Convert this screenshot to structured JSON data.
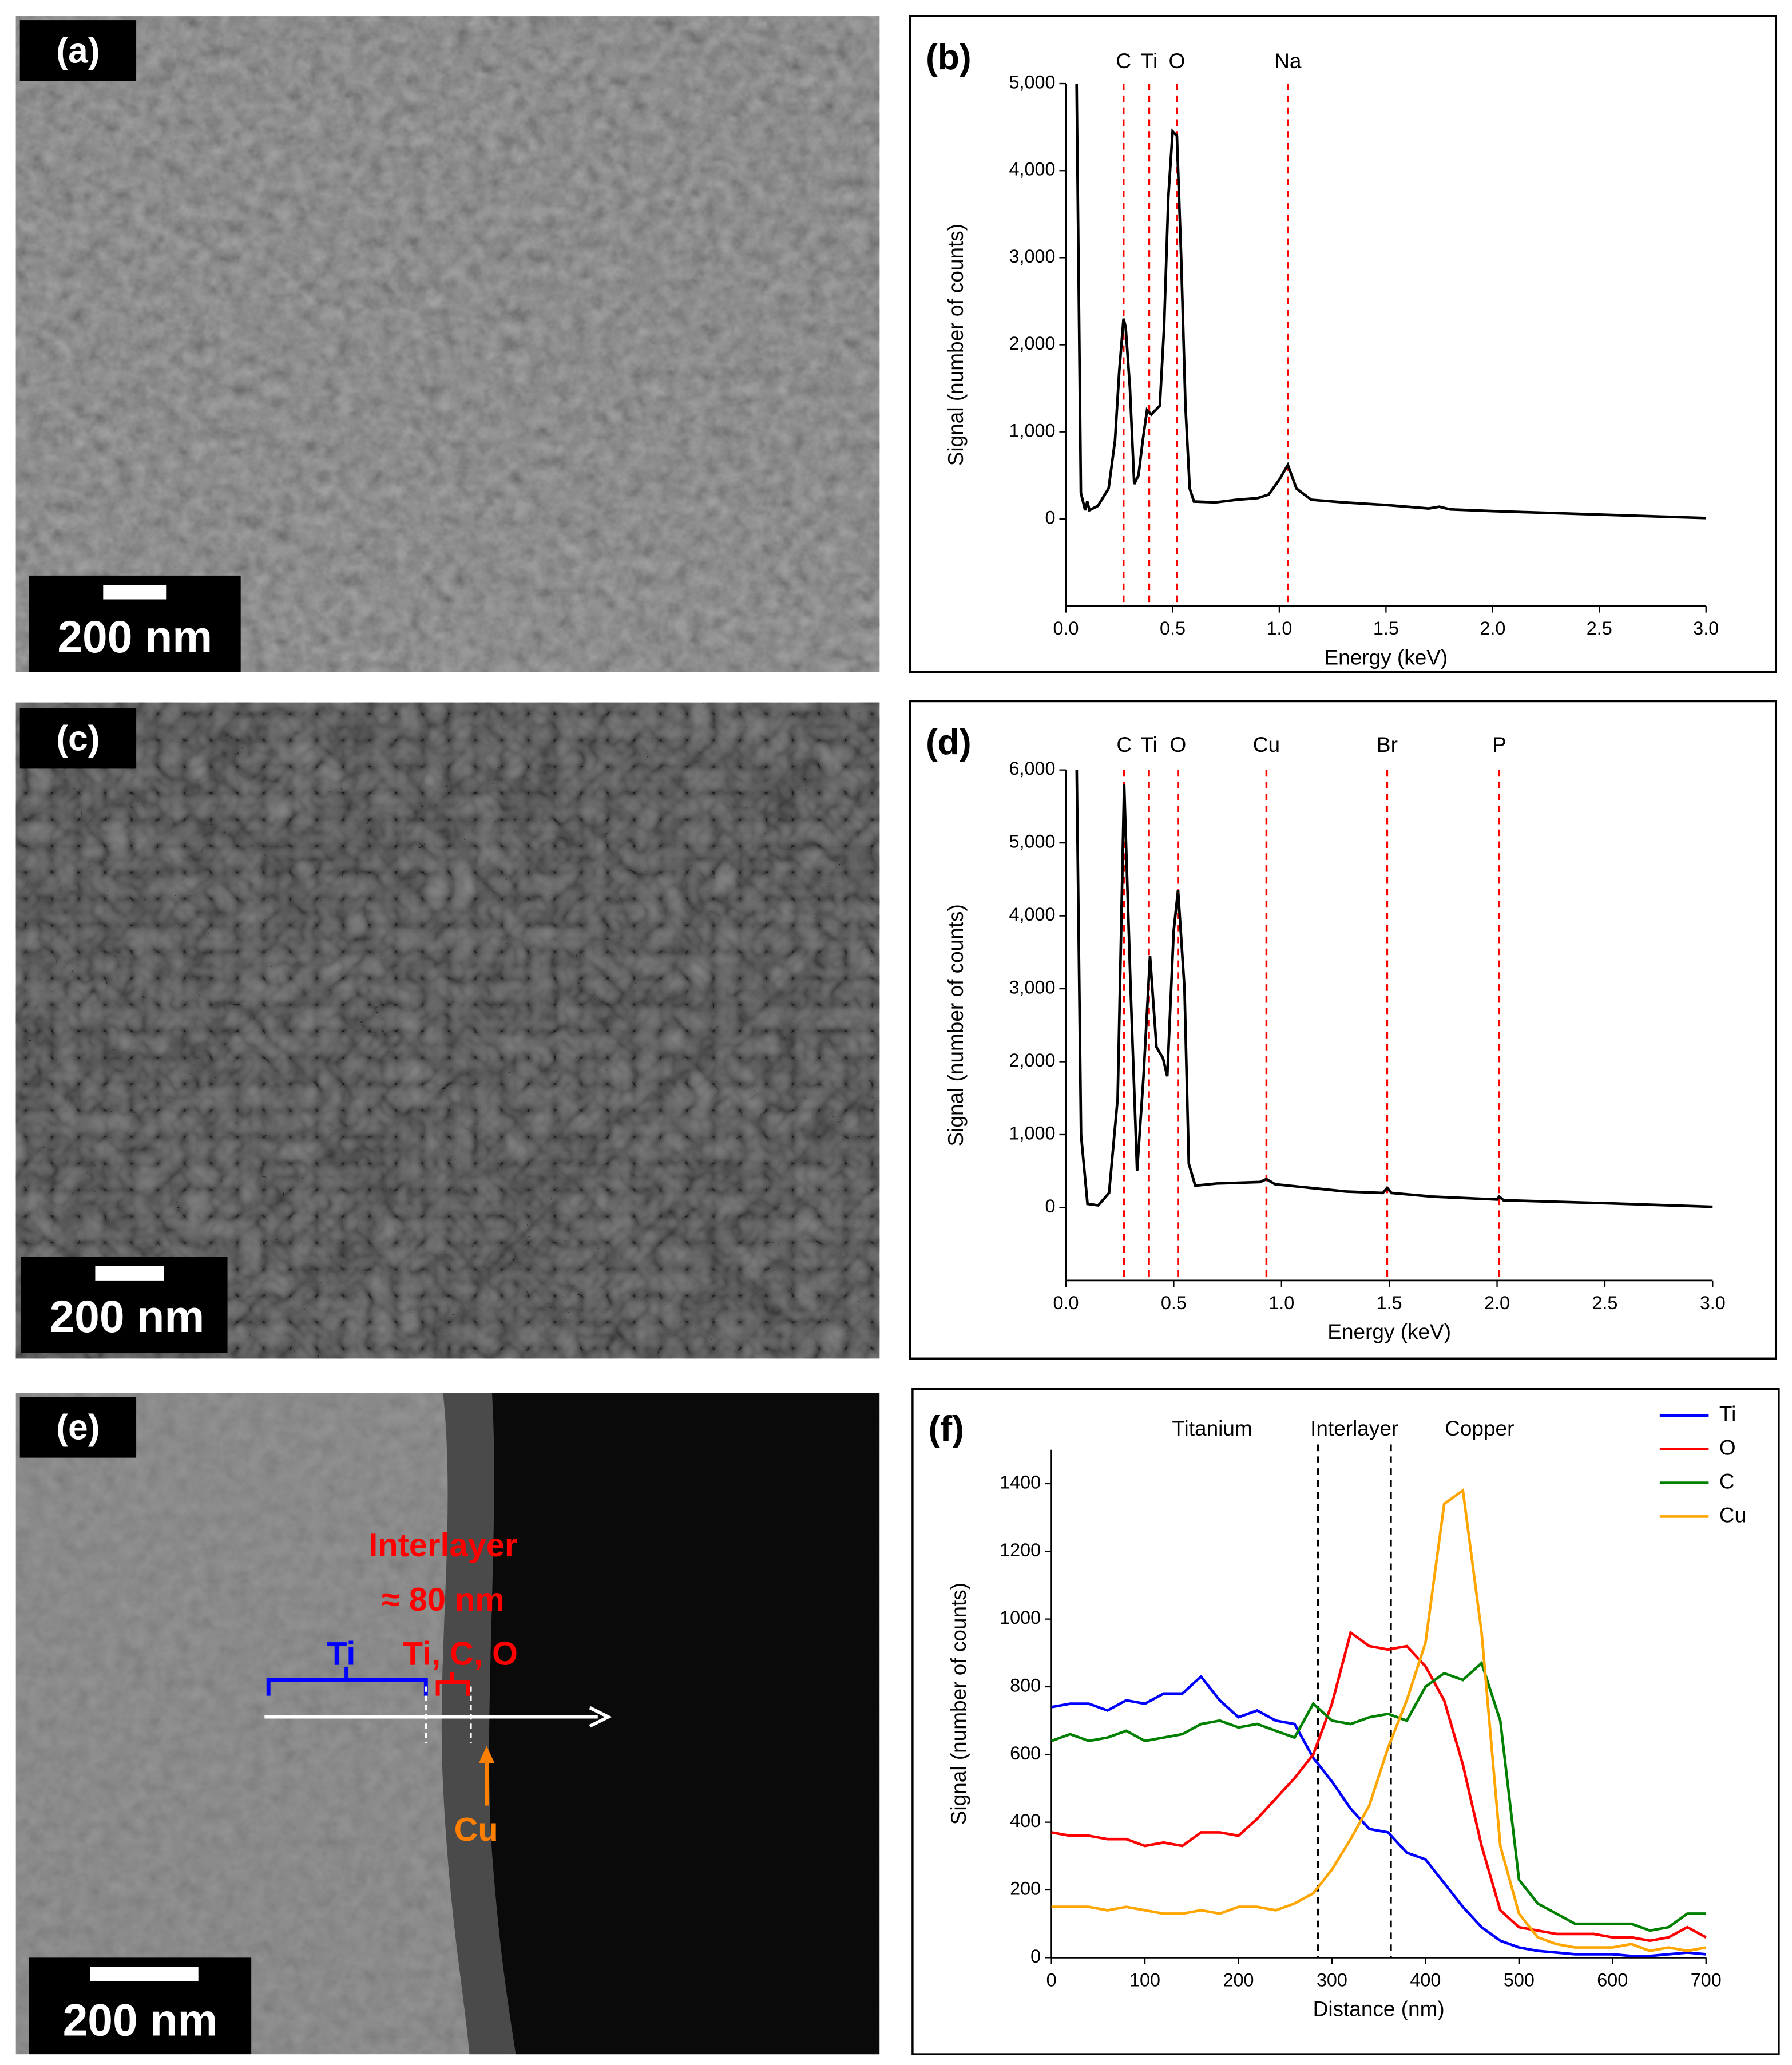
{
  "chart_data": [
    {
      "type": "line",
      "panel_label": "(b)",
      "x_label": "Energy (keV)",
      "y_label": "Signal (number of counts)",
      "color": "#000000",
      "x": [
        0.05,
        0.07,
        0.09,
        0.1,
        0.11,
        0.15,
        0.2,
        0.23,
        0.25,
        0.27,
        0.28,
        0.3,
        0.32,
        0.34,
        0.36,
        0.38,
        0.4,
        0.42,
        0.44,
        0.46,
        0.48,
        0.5,
        0.52,
        0.54,
        0.56,
        0.58,
        0.6,
        0.7,
        0.8,
        0.9,
        0.95,
        1.0,
        1.04,
        1.08,
        1.15,
        1.3,
        1.5,
        1.7,
        1.75,
        1.8,
        2.0,
        2.5,
        3.0
      ],
      "values": [
        5000,
        300,
        100,
        200,
        100,
        150,
        350,
        900,
        1700,
        2300,
        2200,
        1500,
        400,
        500,
        900,
        1250,
        1200,
        1250,
        1300,
        2200,
        3700,
        4450,
        4400,
        3000,
        1300,
        350,
        200,
        190,
        220,
        240,
        280,
        450,
        620,
        350,
        220,
        190,
        160,
        120,
        140,
        110,
        90,
        50,
        10
      ],
      "xlim": [
        0,
        3
      ],
      "ylim": [
        -1000,
        5000
      ],
      "xticks": [
        {
          "value": 0,
          "label": "0.0"
        },
        0.5,
        {
          "value": 1,
          "label": "1.0"
        },
        1.5,
        {
          "value": 2,
          "label": "2.0"
        },
        2.5,
        {
          "value": 3,
          "label": "3.0"
        }
      ],
      "yticks": [
        0,
        {
          "value": 1000,
          "label": "1,000"
        },
        {
          "value": 2000,
          "label": "2,000"
        },
        {
          "value": 3000,
          "label": "3,000"
        },
        {
          "value": 4000,
          "label": "4,000"
        },
        {
          "value": 5000,
          "label": "5,000"
        }
      ],
      "marker_color": "#ff0000",
      "markers": [
        {
          "label": "C",
          "x": 0.27
        },
        {
          "label": "Ti",
          "x": 0.39
        },
        {
          "label": "O",
          "x": 0.52
        },
        {
          "label": "Na",
          "x": 1.04
        }
      ]
    },
    {
      "type": "line",
      "panel_label": "(d)",
      "x_label": "Energy (keV)",
      "y_label": "Signal (number of counts)",
      "color": "#000000",
      "x": [
        0.05,
        0.07,
        0.1,
        0.15,
        0.2,
        0.24,
        0.27,
        0.3,
        0.33,
        0.36,
        0.39,
        0.42,
        0.45,
        0.47,
        0.5,
        0.52,
        0.55,
        0.57,
        0.6,
        0.7,
        0.8,
        0.9,
        0.93,
        0.97,
        1.1,
        1.3,
        1.47,
        1.49,
        1.51,
        1.7,
        2.0,
        2.01,
        2.03,
        2.5,
        3.0
      ],
      "values": [
        6000,
        1000,
        50,
        30,
        200,
        1500,
        5800,
        3000,
        500,
        1800,
        3450,
        2200,
        2050,
        1800,
        3800,
        4350,
        3000,
        600,
        300,
        330,
        340,
        350,
        390,
        320,
        280,
        220,
        200,
        270,
        200,
        150,
        110,
        150,
        100,
        60,
        10
      ],
      "xlim": [
        0,
        3
      ],
      "ylim": [
        -1000,
        6000
      ],
      "xticks": [
        {
          "value": 0,
          "label": "0.0"
        },
        0.5,
        {
          "value": 1,
          "label": "1.0"
        },
        1.5,
        {
          "value": 2,
          "label": "2.0"
        },
        2.5,
        {
          "value": 3,
          "label": "3.0"
        }
      ],
      "yticks": [
        0,
        {
          "value": 1000,
          "label": "1,000"
        },
        {
          "value": 2000,
          "label": "2,000"
        },
        {
          "value": 3000,
          "label": "3,000"
        },
        {
          "value": 4000,
          "label": "4,000"
        },
        {
          "value": 5000,
          "label": "5,000"
        },
        {
          "value": 6000,
          "label": "6,000"
        }
      ],
      "marker_color": "#ff0000",
      "markers": [
        {
          "label": "C",
          "x": 0.27
        },
        {
          "label": "Ti",
          "x": 0.385
        },
        {
          "label": "O",
          "x": 0.52
        },
        {
          "label": "Cu",
          "x": 0.93
        },
        {
          "label": "Br",
          "x": 1.49
        },
        {
          "label": "P",
          "x": 2.01
        }
      ]
    },
    {
      "type": "multiline",
      "panel_label": "(f)",
      "x_label": "Distance (nm)",
      "y_label": "Signal (number of counts)",
      "x": [
        0,
        20,
        40,
        60,
        80,
        100,
        120,
        140,
        160,
        180,
        200,
        220,
        240,
        260,
        280,
        300,
        320,
        340,
        360,
        380,
        400,
        420,
        440,
        460,
        480,
        500,
        520,
        540,
        560,
        580,
        600,
        620,
        640,
        660,
        680,
        700
      ],
      "series": [
        {
          "name": "Ti",
          "color": "#0000ff",
          "values": [
            740,
            750,
            750,
            730,
            760,
            750,
            780,
            780,
            830,
            760,
            710,
            730,
            700,
            690,
            590,
            520,
            440,
            380,
            370,
            310,
            290,
            220,
            150,
            90,
            50,
            30,
            20,
            15,
            10,
            10,
            10,
            5,
            5,
            10,
            15,
            10
          ]
        },
        {
          "name": "O",
          "color": "#ff0000",
          "values": [
            370,
            360,
            360,
            350,
            350,
            330,
            340,
            330,
            370,
            370,
            360,
            410,
            470,
            530,
            600,
            750,
            960,
            920,
            910,
            920,
            860,
            760,
            570,
            330,
            140,
            90,
            80,
            70,
            70,
            70,
            60,
            60,
            50,
            60,
            90,
            60
          ]
        },
        {
          "name": "C",
          "color": "#008000",
          "values": [
            640,
            660,
            640,
            650,
            670,
            640,
            650,
            660,
            690,
            700,
            680,
            690,
            670,
            650,
            750,
            700,
            690,
            710,
            720,
            700,
            800,
            840,
            820,
            870,
            700,
            230,
            160,
            130,
            100,
            100,
            100,
            100,
            80,
            90,
            130,
            130
          ]
        },
        {
          "name": "Cu",
          "color": "#ffa500",
          "values": [
            150,
            150,
            150,
            140,
            150,
            140,
            130,
            130,
            140,
            130,
            150,
            150,
            140,
            160,
            190,
            260,
            350,
            450,
            620,
            760,
            930,
            1340,
            1380,
            960,
            330,
            130,
            60,
            40,
            30,
            30,
            30,
            40,
            20,
            30,
            20,
            30
          ]
        }
      ],
      "xlim": [
        0,
        700
      ],
      "ylim": [
        0,
        1500
      ],
      "xticks": [
        0,
        100,
        200,
        300,
        400,
        500,
        600,
        700
      ],
      "yticks": [
        0,
        200,
        400,
        600,
        800,
        1000,
        1200,
        1400
      ],
      "dividers": [
        285,
        363
      ],
      "region_labels": [
        "Titanium",
        "Interlayer",
        "Copper"
      ],
      "legend": "upper right"
    }
  ],
  "images": [
    {
      "label": "(a)",
      "scale_bar": "200 nm"
    },
    {
      "label": "(c)",
      "scale_bar": "200 nm"
    },
    {
      "label": "(e)",
      "scale_bar": "200 nm",
      "annotations": {
        "interlayer": "Interlayer",
        "thickness": "≈ 80 nm",
        "interlayer_elements": "Ti, C, O",
        "titanium": "Ti",
        "copper": "Cu"
      }
    }
  ]
}
